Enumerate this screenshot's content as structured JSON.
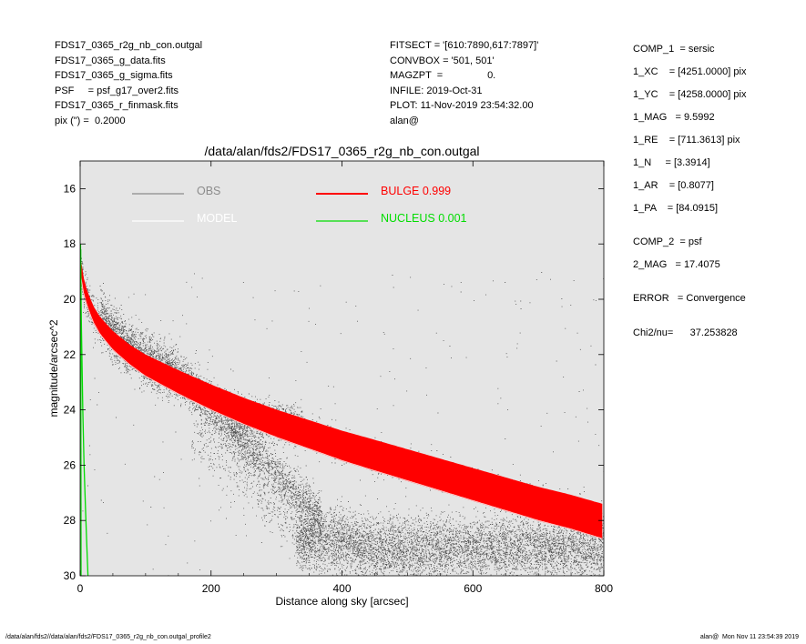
{
  "header_left": [
    "FDS17_0365_r2g_nb_con.outgal",
    "FDS17_0365_g_data.fits",
    "FDS17_0365_g_sigma.fits",
    "PSF     = psf_g17_over2.fits",
    "FDS17_0365_r_finmask.fits",
    "pix (\") =  0.2000"
  ],
  "header_mid": [
    "FITSECT = '[610:7890,617:7897]'",
    "CONVBOX = '501, 501'",
    "MAGZPT  =                0.",
    "INFILE: 2019-Oct-31",
    "PLOT: 11-Nov-2019 23:54:32.00",
    "alan@"
  ],
  "params": [
    "COMP_1  = sersic",
    "1_XC    = [4251.0000] pix",
    "1_YC    = [4258.0000] pix",
    "1_MAG   = 9.5992",
    "1_RE    = [711.3613] pix",
    "1_N     = [3.3914]",
    "1_AR    = [0.8077]",
    "1_PA    = [84.0915]",
    "COMP_2  = psf",
    "2_MAG   = 17.4075",
    "ERROR   = Convergence",
    "Chi2/nu=      37.253828"
  ],
  "footer": {
    "left": "/data/alan/fds2//data/alan/fds2/FDS17_0365_r2g_nb_con.outgal_profile2",
    "right": "alan@  Mon Nov 11 23:54:39 2019"
  },
  "chart_data": {
    "type": "scatter",
    "title": "/data/alan/fds2/FDS17_0365_r2g_nb_con.outgal",
    "xlabel": "Distance along sky [arcsec]",
    "ylabel": "magnitude/arcsec^2",
    "xlim": [
      0,
      800
    ],
    "ylim": [
      30,
      15
    ],
    "y_inverted": true,
    "xticks": [
      0,
      200,
      400,
      600,
      800
    ],
    "yticks": [
      16,
      18,
      20,
      22,
      24,
      26,
      28,
      30
    ],
    "grid": false,
    "background": "#e5e5e5",
    "legend": [
      {
        "label": "OBS",
        "color": "#8c8c8c"
      },
      {
        "label": "MODEL",
        "color": "#ffffff"
      },
      {
        "label": "BULGE  0.999",
        "color": "#ff0000"
      },
      {
        "label": "NUCLEUS  0.001",
        "color": "#00dd00"
      }
    ],
    "series": [
      {
        "name": "BULGE  0.999",
        "color": "#ff0000",
        "x": [
          1,
          5,
          10,
          20,
          30,
          50,
          75,
          100,
          150,
          200,
          250,
          300,
          350,
          400,
          450,
          500,
          550,
          600,
          650,
          700,
          750,
          800
        ],
        "y_center": [
          18.9,
          19.5,
          19.95,
          20.55,
          20.95,
          21.5,
          22.0,
          22.4,
          23.0,
          23.55,
          24.05,
          24.5,
          24.9,
          25.3,
          25.65,
          26.0,
          26.35,
          26.7,
          27.05,
          27.4,
          27.7,
          28.05
        ],
        "band_width": [
          0.25,
          0.25,
          0.25,
          0.28,
          0.3,
          0.33,
          0.35,
          0.38,
          0.42,
          0.45,
          0.47,
          0.49,
          0.51,
          0.53,
          0.55,
          0.56,
          0.57,
          0.58,
          0.59,
          0.6,
          0.61,
          0.62
        ]
      },
      {
        "name": "NUCLEUS  0.001",
        "color": "#00dd00",
        "x": [
          0.5,
          1,
          2,
          4,
          6,
          8,
          10,
          12
        ],
        "y": [
          18.0,
          19.2,
          21.0,
          24.0,
          26.0,
          27.5,
          28.8,
          30.0
        ]
      }
    ]
  }
}
